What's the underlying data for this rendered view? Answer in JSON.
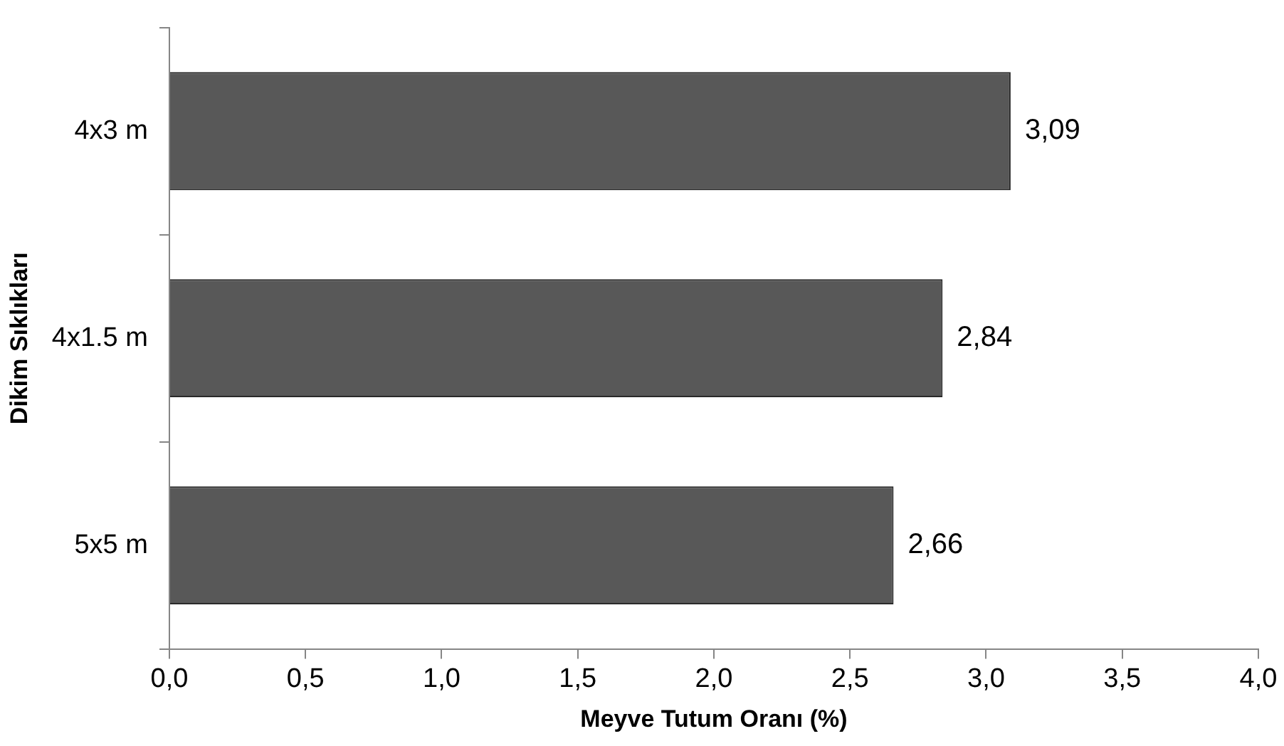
{
  "chart_data": {
    "type": "bar",
    "orientation": "horizontal",
    "xlabel": "Meyve Tutum Oranı (%)",
    "ylabel": "Dikim Sıklıkları",
    "categories": [
      "4x3 m",
      "4x1.5 m",
      "5x5 m"
    ],
    "values": [
      3.09,
      2.84,
      2.66
    ],
    "value_labels": [
      "3,09",
      "2,84",
      "2,66"
    ],
    "color": "#585858",
    "xlim": [
      0,
      4
    ],
    "xticks": [
      {
        "value": 0,
        "label": "0,0"
      },
      {
        "value": 0.5,
        "label": "0,5"
      },
      {
        "value": 1,
        "label": "1,0"
      },
      {
        "value": 1.5,
        "label": "1,5"
      },
      {
        "value": 2,
        "label": "2,0"
      },
      {
        "value": 2.5,
        "label": "2,5"
      },
      {
        "value": 3,
        "label": "3,0"
      },
      {
        "value": 3.5,
        "label": "3,5"
      },
      {
        "value": 4,
        "label": "4,0"
      }
    ],
    "grid": false,
    "legend": false
  }
}
